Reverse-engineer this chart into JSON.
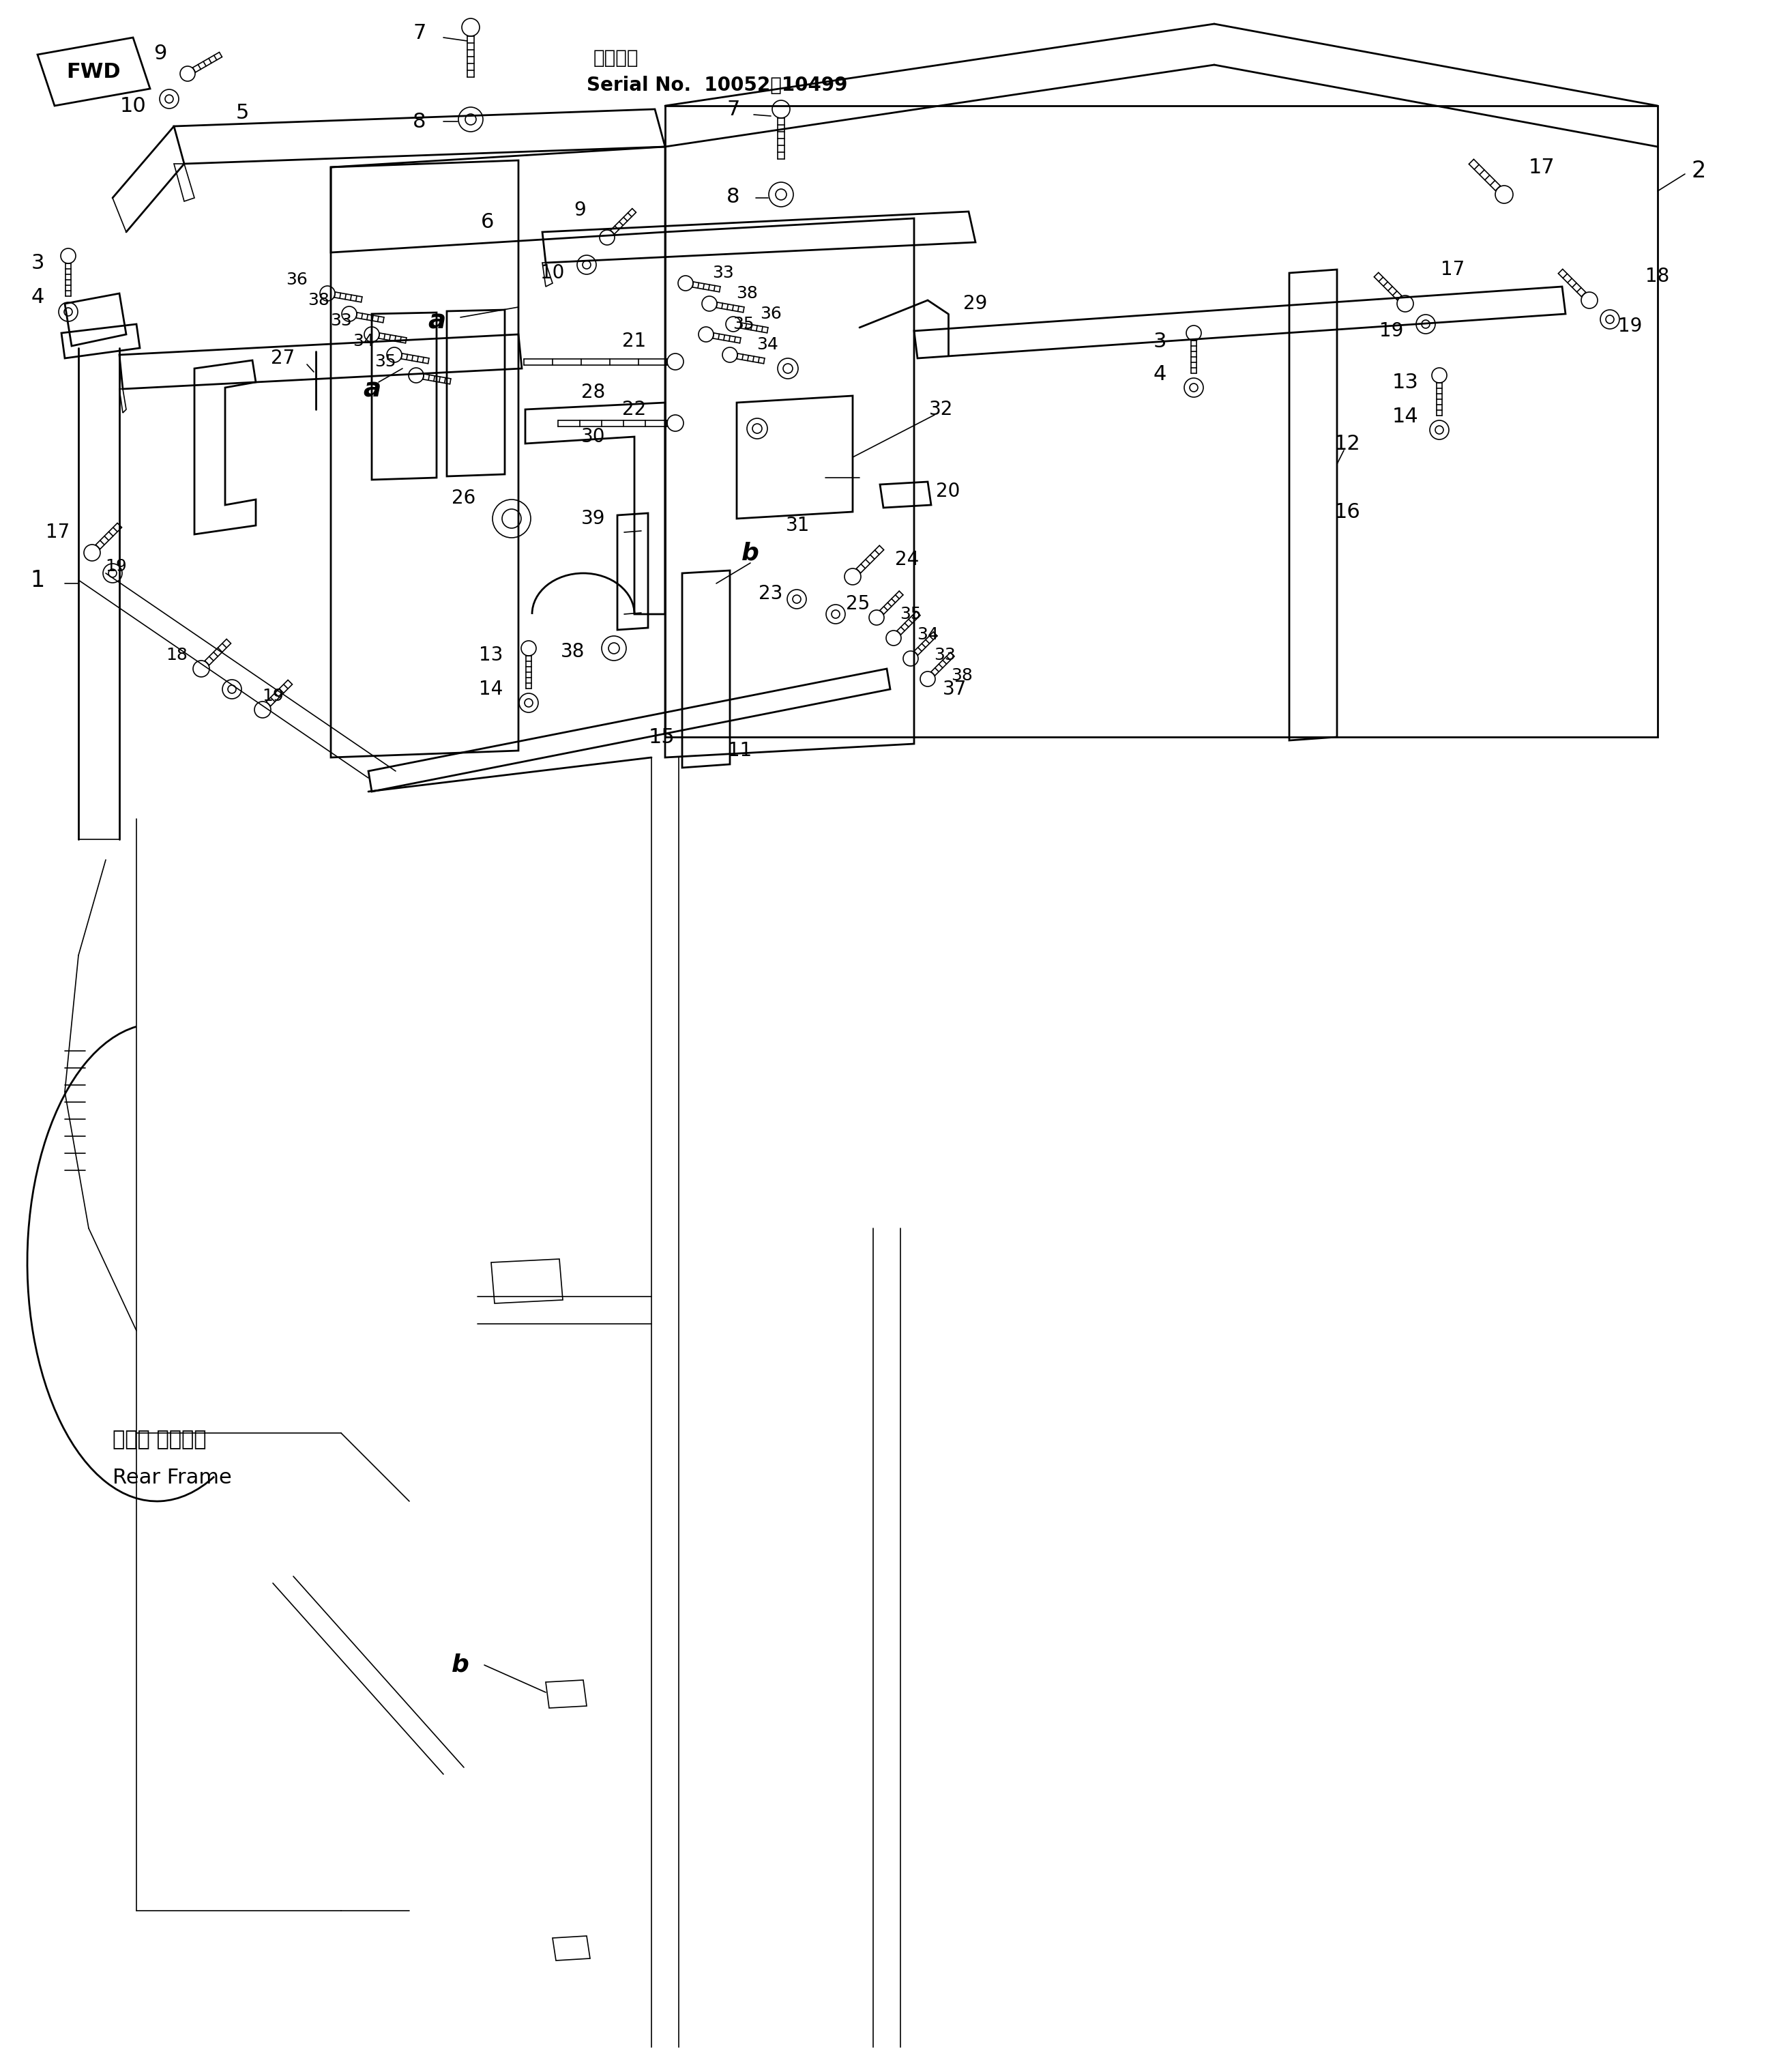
{
  "bg_color": "#ffffff",
  "line_color": "#000000",
  "text_color": "#000000",
  "fig_width": 26.27,
  "fig_height": 30.1,
  "serial_text_line1": "適用号機",
  "serial_text_line2": "Serial No.  10052～10499",
  "rear_frame_jp": "リヤー フレーム",
  "rear_frame_en": "Rear Frame",
  "fwd_label": "FWD"
}
